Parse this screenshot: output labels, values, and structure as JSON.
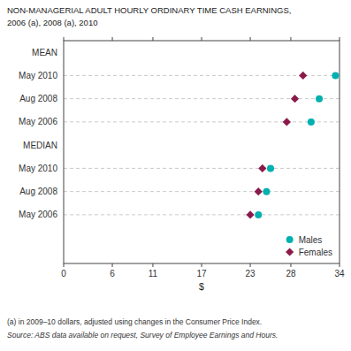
{
  "chart_data": {
    "type": "dot",
    "title": "NON-MANAGERIAL ADULT HOURLY ORDINARY TIME CASH EARNINGS,",
    "subtitle": "2006 (a), 2008 (a), 2010",
    "xlabel": "$",
    "orientation": "horizontal",
    "categories": [
      "MEAN",
      "May 2010",
      "Aug 2008",
      "May 2006",
      "MEDIAN",
      "May 2010",
      "Aug 2008",
      "May 2006"
    ],
    "series": [
      {
        "name": "Males",
        "color": "#00b0b0",
        "marker": "circle",
        "values": [
          null,
          33.5,
          31.5,
          30.5,
          null,
          25.5,
          25.0,
          24.0
        ]
      },
      {
        "name": "Females",
        "color": "#8b1a4a",
        "marker": "diamond",
        "values": [
          null,
          29.5,
          28.5,
          27.5,
          null,
          24.5,
          24.0,
          23.0
        ]
      }
    ],
    "xlim": [
      0,
      34
    ],
    "xticks": [
      0,
      6,
      11,
      17,
      23,
      28,
      34
    ],
    "grid": false,
    "legend": "lower right",
    "annotations": [
      "(a) in 2009–10 dollars, adjusted using changes in the Consumer Price Index.",
      "Source: ABS data available on request, Survey of Employee Earnings and Hours."
    ]
  }
}
